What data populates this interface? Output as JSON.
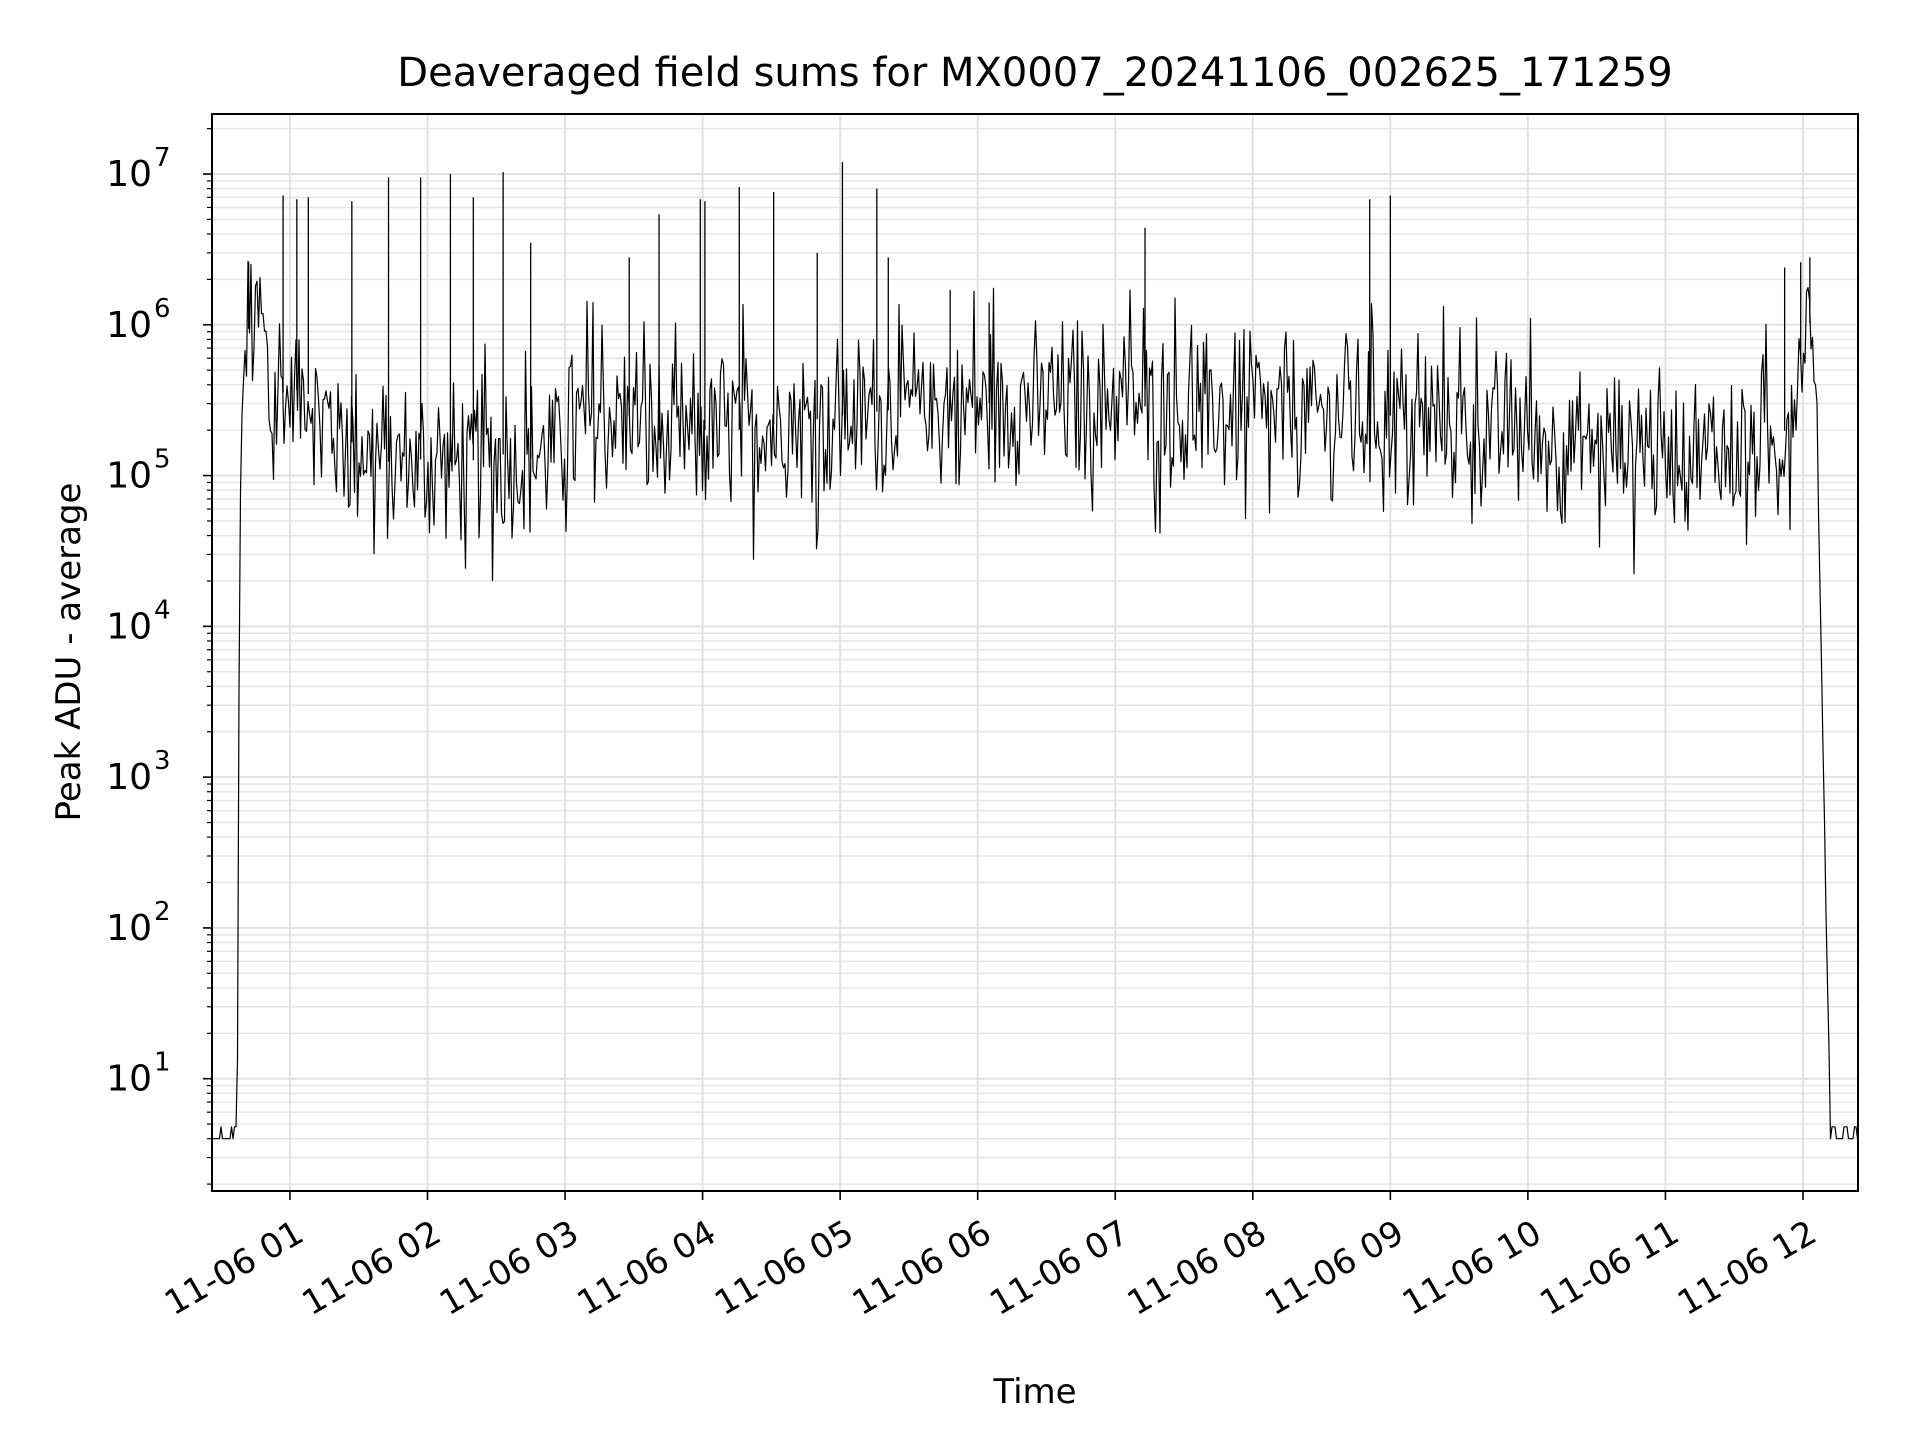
{
  "chart_data": {
    "type": "line",
    "title": "Deaveraged field sums for MX0007_20241106_002625_171259",
    "xlabel": "Time",
    "ylabel": "Peak ADU - average",
    "yscale": "log",
    "grid": true,
    "xlim": [
      "2024-11-06 00:26",
      "2024-11-06 12:24"
    ],
    "ylim": [
      1.8,
      25000000
    ],
    "x_ticks": [
      {
        "t": "2024-11-06 01:00",
        "label": "11-06 01"
      },
      {
        "t": "2024-11-06 02:00",
        "label": "11-06 02"
      },
      {
        "t": "2024-11-06 03:00",
        "label": "11-06 03"
      },
      {
        "t": "2024-11-06 04:00",
        "label": "11-06 04"
      },
      {
        "t": "2024-11-06 05:00",
        "label": "11-06 05"
      },
      {
        "t": "2024-11-06 06:00",
        "label": "11-06 06"
      },
      {
        "t": "2024-11-06 07:00",
        "label": "11-06 07"
      },
      {
        "t": "2024-11-06 08:00",
        "label": "11-06 08"
      },
      {
        "t": "2024-11-06 09:00",
        "label": "11-06 09"
      },
      {
        "t": "2024-11-06 10:00",
        "label": "11-06 10"
      },
      {
        "t": "2024-11-06 11:00",
        "label": "11-06 11"
      },
      {
        "t": "2024-11-06 12:00",
        "label": "11-06 12"
      }
    ],
    "y_ticks": [
      {
        "value": 10,
        "base": "10",
        "exp": "1"
      },
      {
        "value": 100,
        "base": "10",
        "exp": "2"
      },
      {
        "value": 1000,
        "base": "10",
        "exp": "3"
      },
      {
        "value": 10000,
        "base": "10",
        "exp": "4"
      },
      {
        "value": 100000,
        "base": "10",
        "exp": "5"
      },
      {
        "value": 1000000,
        "base": "10",
        "exp": "6"
      },
      {
        "value": 10000000,
        "base": "10",
        "exp": "7"
      }
    ],
    "series": [
      {
        "color": "#000000",
        "points": [
          [
            "2024-11-06 00:26",
            4
          ],
          [
            "2024-11-06 00:37",
            4
          ],
          [
            "2024-11-06 00:38",
            20000
          ],
          [
            "2024-11-06 00:39",
            300000
          ],
          [
            "2024-11-06 00:41",
            800000
          ],
          [
            "2024-11-06 00:43",
            1100000
          ],
          [
            "2024-11-06 00:45",
            900000
          ],
          [
            "2024-11-06 00:47",
            1300000
          ],
          [
            "2024-11-06 00:49",
            700000
          ],
          [
            "2024-11-06 00:52",
            200000
          ],
          [
            "2024-11-06 00:55",
            500000
          ],
          [
            "2024-11-06 00:58",
            300000
          ],
          [
            "2024-11-06 01:05",
            400000
          ],
          [
            "2024-11-06 01:15",
            250000
          ],
          [
            "2024-11-06 01:30",
            150000
          ],
          [
            "2024-11-06 01:45",
            120000
          ],
          [
            "2024-11-06 02:00",
            130000
          ],
          [
            "2024-11-06 02:15",
            120000
          ],
          [
            "2024-11-06 02:30",
            140000
          ],
          [
            "2024-11-06 02:45",
            130000
          ],
          [
            "2024-11-06 03:00",
            180000
          ],
          [
            "2024-11-06 03:15",
            250000
          ],
          [
            "2024-11-06 03:30",
            250000
          ],
          [
            "2024-11-06 03:45",
            150000
          ],
          [
            "2024-11-06 04:00",
            200000
          ],
          [
            "2024-11-06 04:15",
            200000
          ],
          [
            "2024-11-06 04:30",
            220000
          ],
          [
            "2024-11-06 04:45",
            230000
          ],
          [
            "2024-11-06 05:00",
            250000
          ],
          [
            "2024-11-06 05:30",
            280000
          ],
          [
            "2024-11-06 06:00",
            300000
          ],
          [
            "2024-11-06 06:30",
            320000
          ],
          [
            "2024-11-06 07:00",
            320000
          ],
          [
            "2024-11-06 07:30",
            250000
          ],
          [
            "2024-11-06 08:00",
            250000
          ],
          [
            "2024-11-06 08:30",
            250000
          ],
          [
            "2024-11-06 09:00",
            250000
          ],
          [
            "2024-11-06 09:30",
            220000
          ],
          [
            "2024-11-06 10:00",
            180000
          ],
          [
            "2024-11-06 10:30",
            160000
          ],
          [
            "2024-11-06 11:00",
            150000
          ],
          [
            "2024-11-06 11:30",
            140000
          ],
          [
            "2024-11-06 11:50",
            150000
          ],
          [
            "2024-11-06 11:55",
            300000
          ],
          [
            "2024-11-06 12:00",
            700000
          ],
          [
            "2024-11-06 12:02",
            1300000
          ],
          [
            "2024-11-06 12:04",
            800000
          ],
          [
            "2024-11-06 12:06",
            300000
          ],
          [
            "2024-11-06 12:10",
            120
          ],
          [
            "2024-11-06 12:12",
            4
          ],
          [
            "2024-11-06 12:24",
            4
          ]
        ],
        "spikes": [
          [
            "2024-11-06 00:42",
            2600000
          ],
          [
            "2024-11-06 00:57",
            7200000
          ],
          [
            "2024-11-06 01:03",
            6800000
          ],
          [
            "2024-11-06 01:08",
            7000000
          ],
          [
            "2024-11-06 01:27",
            6600000
          ],
          [
            "2024-11-06 01:43",
            9500000
          ],
          [
            "2024-11-06 01:57",
            9500000
          ],
          [
            "2024-11-06 02:10",
            10000000
          ],
          [
            "2024-11-06 02:20",
            7000000
          ],
          [
            "2024-11-06 02:33",
            10300000
          ],
          [
            "2024-11-06 02:45",
            3500000
          ],
          [
            "2024-11-06 03:28",
            2800000
          ],
          [
            "2024-11-06 03:41",
            5400000
          ],
          [
            "2024-11-06 03:59",
            6800000
          ],
          [
            "2024-11-06 04:01",
            6600000
          ],
          [
            "2024-11-06 04:16",
            8200000
          ],
          [
            "2024-11-06 04:31",
            7600000
          ],
          [
            "2024-11-06 04:50",
            3000000
          ],
          [
            "2024-11-06 05:01",
            12000000
          ],
          [
            "2024-11-06 05:16",
            8000000
          ],
          [
            "2024-11-06 05:21",
            2800000
          ],
          [
            "2024-11-06 05:48",
            1700000
          ],
          [
            "2024-11-06 06:05",
            1400000
          ],
          [
            "2024-11-06 07:13",
            4400000
          ],
          [
            "2024-11-06 08:51",
            6800000
          ],
          [
            "2024-11-06 09:00",
            7200000
          ],
          [
            "2024-11-06 11:52",
            2400000
          ],
          [
            "2024-11-06 11:59",
            2600000
          ],
          [
            "2024-11-06 12:03",
            2800000
          ]
        ]
      }
    ]
  }
}
